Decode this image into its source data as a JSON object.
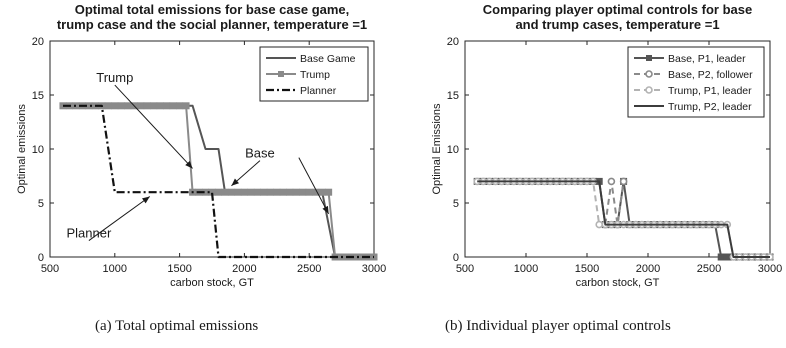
{
  "chart_data": [
    {
      "type": "line",
      "title": [
        "Optimal total emissions for base case game,",
        "trump case and the social planner, temperature =1"
      ],
      "xlabel": "carbon stock, GT",
      "ylabel": "Optimal emissions",
      "xlim": [
        500,
        3000
      ],
      "ylim": [
        0,
        20
      ],
      "xticks": [
        500,
        1000,
        1500,
        2000,
        2500,
        3000
      ],
      "yticks": [
        0,
        5,
        10,
        15,
        20
      ],
      "grid": false,
      "legend_position": "top-right",
      "series": [
        {
          "name": "Base Game",
          "color": "#555555",
          "dash": "solid",
          "marker": "none",
          "width": 2,
          "x": [
            600,
            1600,
            1700,
            1750,
            1800,
            1850,
            2600,
            2700,
            3000
          ],
          "y": [
            14,
            14,
            10,
            10,
            10,
            6,
            6,
            0,
            0
          ]
        },
        {
          "name": "Trump",
          "color": "#8a8a8a",
          "dash": "solid",
          "marker": "square",
          "width": 2,
          "x": [
            600,
            650,
            700,
            750,
            800,
            850,
            900,
            950,
            1000,
            1050,
            1100,
            1150,
            1200,
            1250,
            1300,
            1350,
            1400,
            1450,
            1500,
            1550,
            1600,
            1650,
            1700,
            1750,
            1800,
            1850,
            1900,
            1950,
            2000,
            2050,
            2100,
            2150,
            2200,
            2250,
            2300,
            2350,
            2400,
            2450,
            2500,
            2550,
            2600,
            2650,
            2700,
            2750,
            2800,
            2850,
            2900,
            2950,
            3000
          ],
          "y": [
            14,
            14,
            14,
            14,
            14,
            14,
            14,
            14,
            14,
            14,
            14,
            14,
            14,
            14,
            14,
            14,
            14,
            14,
            14,
            14,
            6,
            6,
            6,
            6,
            6,
            6,
            6,
            6,
            6,
            6,
            6,
            6,
            6,
            6,
            6,
            6,
            6,
            6,
            6,
            6,
            6,
            6,
            0,
            0,
            0,
            0,
            0,
            0,
            0
          ]
        },
        {
          "name": "Planner",
          "color": "#111111",
          "dash": "dashdot",
          "marker": "none",
          "width": 2.2,
          "x": [
            600,
            900,
            1000,
            1750,
            1800,
            3000
          ],
          "y": [
            14,
            14,
            6,
            6,
            0,
            0
          ]
        }
      ],
      "annotations": [
        {
          "text": "Trump",
          "label_x": 1000,
          "label_y": 16.2,
          "arrow_to_x": 1600,
          "arrow_to_y": 8.2
        },
        {
          "text": "Base",
          "label_x": 2120,
          "label_y": 9.2,
          "arrow_to_x": 1900,
          "arrow_to_y": 6.6
        },
        {
          "text": "Base",
          "label_x": null,
          "label_y": null,
          "arrow_from_x": 2420,
          "arrow_from_y": 9.2,
          "arrow_to_x": 2650,
          "arrow_to_y": 4.0
        },
        {
          "text": "Planner",
          "label_x": 800,
          "label_y": 1.8,
          "arrow_to_x": 1270,
          "arrow_to_y": 5.6
        }
      ]
    },
    {
      "type": "line",
      "title": [
        "Comparing player optimal controls for base",
        "and trump cases, temperature =1"
      ],
      "xlabel": "carbon stock, GT",
      "ylabel": "Optimal Emissions",
      "xlim": [
        500,
        3000
      ],
      "ylim": [
        0,
        20
      ],
      "xticks": [
        500,
        1000,
        1500,
        2000,
        2500,
        3000
      ],
      "yticks": [
        0,
        5,
        10,
        15,
        20
      ],
      "grid": false,
      "legend_position": "top-right",
      "series": [
        {
          "name": "Base, P1, leader",
          "color": "#555555",
          "dash": "solid",
          "marker": "square",
          "width": 2,
          "x": [
            600,
            650,
            700,
            750,
            800,
            850,
            900,
            950,
            1000,
            1050,
            1100,
            1150,
            1200,
            1250,
            1300,
            1350,
            1400,
            1450,
            1500,
            1550,
            1600,
            1650,
            1700,
            1750,
            1800,
            1850,
            1900,
            1950,
            2000,
            2050,
            2100,
            2150,
            2200,
            2250,
            2300,
            2350,
            2400,
            2450,
            2500,
            2550,
            2600,
            2650,
            2700,
            2750,
            2800,
            2850,
            2900,
            2950,
            3000
          ],
          "y": [
            7,
            7,
            7,
            7,
            7,
            7,
            7,
            7,
            7,
            7,
            7,
            7,
            7,
            7,
            7,
            7,
            7,
            7,
            7,
            7,
            7,
            3,
            3,
            3,
            7,
            3,
            3,
            3,
            3,
            3,
            3,
            3,
            3,
            3,
            3,
            3,
            3,
            3,
            3,
            3,
            0,
            0,
            0,
            0,
            0,
            0,
            0,
            0,
            0
          ]
        },
        {
          "name": "Base, P2, follower",
          "color": "#8a8a8a",
          "dash": "dashed",
          "marker": "circle",
          "width": 2,
          "x": [
            1650,
            1700,
            1750,
            1800
          ],
          "y": [
            3,
            7,
            3,
            7
          ]
        },
        {
          "name": "Trump, P1, leader",
          "color": "#b3b3b3",
          "dash": "dashed",
          "marker": "circle",
          "width": 2,
          "x": [
            600,
            650,
            700,
            750,
            800,
            850,
            900,
            950,
            1000,
            1050,
            1100,
            1150,
            1200,
            1250,
            1300,
            1350,
            1400,
            1450,
            1500,
            1550,
            1600,
            1650,
            1700,
            1750,
            1800,
            1850,
            1900,
            1950,
            2000,
            2050,
            2100,
            2150,
            2200,
            2250,
            2300,
            2350,
            2400,
            2450,
            2500,
            2550,
            2600,
            2650,
            2700,
            2750,
            2800,
            2850,
            2900,
            2950,
            3000
          ],
          "y": [
            7,
            7,
            7,
            7,
            7,
            7,
            7,
            7,
            7,
            7,
            7,
            7,
            7,
            7,
            7,
            7,
            7,
            7,
            7,
            7,
            3,
            3,
            3,
            3,
            3,
            3,
            3,
            3,
            3,
            3,
            3,
            3,
            3,
            3,
            3,
            3,
            3,
            3,
            3,
            3,
            3,
            3,
            0,
            0,
            0,
            0,
            0,
            0,
            0
          ]
        },
        {
          "name": "Trump, P2, leader",
          "color": "#3c3c3c",
          "dash": "solid",
          "marker": "none",
          "width": 2,
          "x": [
            600,
            1600,
            1650,
            2650,
            2700,
            3000
          ],
          "y": [
            7,
            7,
            3,
            3,
            0,
            0
          ]
        }
      ],
      "annotations": []
    }
  ],
  "captions": {
    "a": "(a)  Total optimal emissions",
    "b": "(b)  Individual player optimal controls"
  }
}
